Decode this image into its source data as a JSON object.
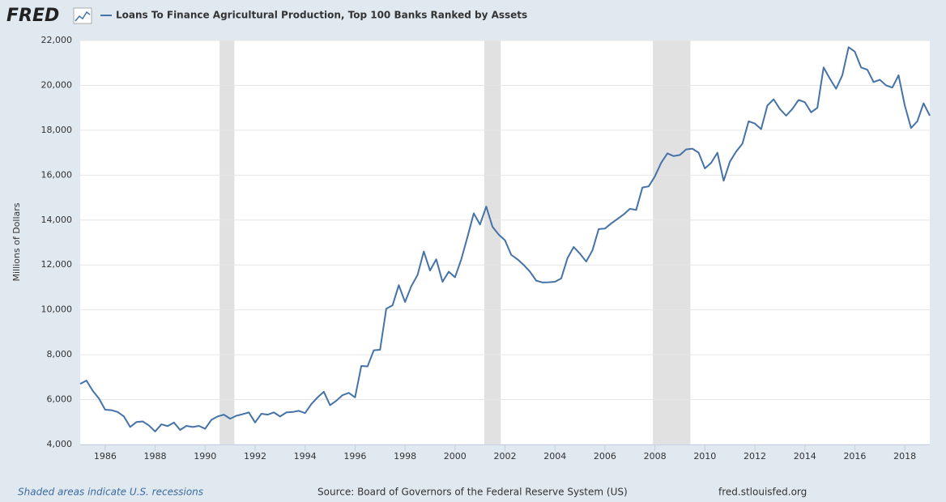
{
  "chart_data": {
    "type": "line",
    "logo": "FRED",
    "ylabel": "Millions of Dollars",
    "note": "Shaded areas indicate U.S. recessions",
    "source": "Source: Board of Governors of the Federal Reserve System (US)",
    "url": "fred.stlouisfed.org",
    "grid": true,
    "xlim": [
      1985.0,
      2019.0
    ],
    "ylim": [
      4000,
      22000
    ],
    "xticks": [
      1986,
      1988,
      1990,
      1992,
      1994,
      1996,
      1998,
      2000,
      2002,
      2004,
      2006,
      2008,
      2010,
      2012,
      2014,
      2016,
      2018
    ],
    "yticks": [
      {
        "value": 4000,
        "label": "4,000"
      },
      {
        "value": 6000,
        "label": "6,000"
      },
      {
        "value": 8000,
        "label": "8,000"
      },
      {
        "value": 10000,
        "label": "10,000"
      },
      {
        "value": 12000,
        "label": "12,000"
      },
      {
        "value": 14000,
        "label": "14,000"
      },
      {
        "value": 16000,
        "label": "16,000"
      },
      {
        "value": 18000,
        "label": "18,000"
      },
      {
        "value": 20000,
        "label": "20,000"
      },
      {
        "value": 22000,
        "label": "22,000"
      }
    ],
    "recessions": [
      [
        1990.58,
        1991.17
      ],
      [
        2001.17,
        2001.83
      ],
      [
        2007.92,
        2009.42
      ]
    ],
    "recession_color": "#e1e1e1",
    "x": [
      1985.0,
      1985.25,
      1985.5,
      1985.75,
      1986.0,
      1986.25,
      1986.5,
      1986.75,
      1987.0,
      1987.25,
      1987.5,
      1987.75,
      1988.0,
      1988.25,
      1988.5,
      1988.75,
      1989.0,
      1989.25,
      1989.5,
      1989.75,
      1990.0,
      1990.25,
      1990.5,
      1990.75,
      1991.0,
      1991.25,
      1991.5,
      1991.75,
      1992.0,
      1992.25,
      1992.5,
      1992.75,
      1993.0,
      1993.25,
      1993.5,
      1993.75,
      1994.0,
      1994.25,
      1994.5,
      1994.75,
      1995.0,
      1995.25,
      1995.5,
      1995.75,
      1996.0,
      1996.25,
      1996.5,
      1996.75,
      1997.0,
      1997.25,
      1997.5,
      1997.75,
      1998.0,
      1998.25,
      1998.5,
      1998.75,
      1999.0,
      1999.25,
      1999.5,
      1999.75,
      2000.0,
      2000.25,
      2000.5,
      2000.75,
      2001.0,
      2001.25,
      2001.5,
      2001.75,
      2002.0,
      2002.25,
      2002.5,
      2002.75,
      2003.0,
      2003.25,
      2003.5,
      2003.75,
      2004.0,
      2004.25,
      2004.5,
      2004.75,
      2005.0,
      2005.25,
      2005.5,
      2005.75,
      2006.0,
      2006.25,
      2006.5,
      2006.75,
      2007.0,
      2007.25,
      2007.5,
      2007.75,
      2008.0,
      2008.25,
      2008.5,
      2008.75,
      2009.0,
      2009.25,
      2009.5,
      2009.75,
      2010.0,
      2010.25,
      2010.5,
      2010.75,
      2011.0,
      2011.25,
      2011.5,
      2011.75,
      2012.0,
      2012.25,
      2012.5,
      2012.75,
      2013.0,
      2013.25,
      2013.5,
      2013.75,
      2014.0,
      2014.25,
      2014.5,
      2014.75,
      2015.0,
      2015.25,
      2015.5,
      2015.75,
      2016.0,
      2016.25,
      2016.5,
      2016.75,
      2017.0,
      2017.25,
      2017.5,
      2017.75,
      2018.0,
      2018.25,
      2018.5,
      2018.75,
      2019.0
    ],
    "series": [
      {
        "name": "Loans To Finance Agricultural Production, Top 100 Banks Ranked by Assets",
        "color": "#4572a7",
        "values": [
          6700,
          6850,
          6400,
          6050,
          5550,
          5530,
          5450,
          5250,
          4780,
          5000,
          5030,
          4850,
          4580,
          4900,
          4820,
          4980,
          4650,
          4830,
          4780,
          4830,
          4700,
          5100,
          5250,
          5330,
          5150,
          5280,
          5350,
          5430,
          4980,
          5370,
          5330,
          5430,
          5250,
          5430,
          5450,
          5500,
          5400,
          5800,
          6100,
          6350,
          5750,
          5950,
          6200,
          6300,
          6100,
          7500,
          7480,
          8200,
          8220,
          10050,
          10200,
          11100,
          10350,
          11050,
          11550,
          12600,
          11750,
          12250,
          11250,
          11700,
          11450,
          12250,
          13250,
          14300,
          13800,
          14600,
          13700,
          13350,
          13100,
          12450,
          12250,
          12000,
          11700,
          11300,
          11220,
          11230,
          11250,
          11400,
          12300,
          12800,
          12500,
          12150,
          12650,
          13600,
          13620,
          13850,
          14050,
          14250,
          14500,
          14450,
          15450,
          15500,
          15950,
          16550,
          16970,
          16850,
          16900,
          17150,
          17180,
          17000,
          16300,
          16550,
          17000,
          15750,
          16600,
          17050,
          17400,
          18400,
          18300,
          18050,
          19100,
          19380,
          18950,
          18650,
          18950,
          19350,
          19250,
          18800,
          19000,
          20800,
          20300,
          19850,
          20450,
          21700,
          21500,
          20800,
          20700,
          20150,
          20250,
          20000,
          19900,
          20450,
          19100,
          18100,
          18400,
          19200,
          18650
        ]
      }
    ]
  }
}
